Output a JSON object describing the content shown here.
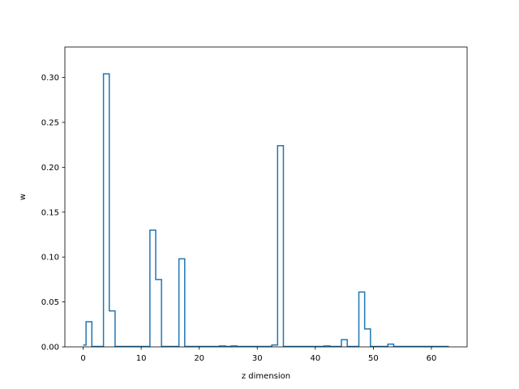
{
  "chart_data": {
    "type": "line",
    "style": "step",
    "xlabel": "z dimension",
    "ylabel": "w",
    "xlim": [
      -3.15,
      66.15
    ],
    "ylim": [
      0,
      0.3339
    ],
    "x_ticks": [
      0,
      10,
      20,
      30,
      40,
      50,
      60
    ],
    "x_tick_labels": [
      "0",
      "10",
      "20",
      "30",
      "40",
      "50",
      "60"
    ],
    "y_ticks": [
      0.0,
      0.05,
      0.1,
      0.15,
      0.2,
      0.25,
      0.3
    ],
    "y_tick_labels": [
      "0.00",
      "0.05",
      "0.10",
      "0.15",
      "0.20",
      "0.25",
      "0.30"
    ],
    "grid": false,
    "line_color": "#1f77b4",
    "x": [
      0,
      1,
      2,
      3,
      4,
      5,
      6,
      7,
      8,
      9,
      10,
      11,
      12,
      13,
      14,
      15,
      16,
      17,
      18,
      19,
      20,
      21,
      22,
      23,
      24,
      25,
      26,
      27,
      28,
      29,
      30,
      31,
      32,
      33,
      34,
      35,
      36,
      37,
      38,
      39,
      40,
      41,
      42,
      43,
      44,
      45,
      46,
      47,
      48,
      49,
      50,
      51,
      52,
      53,
      54,
      55,
      56,
      57,
      58,
      59,
      60,
      61,
      62,
      63
    ],
    "values": [
      0.002,
      0.028,
      0.0005,
      0.0005,
      0.304,
      0.04,
      0.0005,
      0.0005,
      0.0005,
      0.0005,
      0.0005,
      0.0005,
      0.13,
      0.075,
      0.0005,
      0.0005,
      0.0005,
      0.098,
      0.0005,
      0.0005,
      0.0005,
      0.0005,
      0.0005,
      0.0005,
      0.001,
      0.0005,
      0.001,
      0.0005,
      0.0005,
      0.0005,
      0.0005,
      0.0005,
      0.0005,
      0.002,
      0.224,
      0.0005,
      0.0005,
      0.0005,
      0.0005,
      0.0005,
      0.0005,
      0.0005,
      0.001,
      0.0005,
      0.0005,
      0.008,
      0.0005,
      0.0005,
      0.061,
      0.02,
      0.0005,
      0.0005,
      0.0005,
      0.003,
      0.0005,
      0.0005,
      0.0005,
      0.0005,
      0.0005,
      0.0005,
      0.0005,
      0.0005,
      0.0005,
      0.0005
    ]
  }
}
